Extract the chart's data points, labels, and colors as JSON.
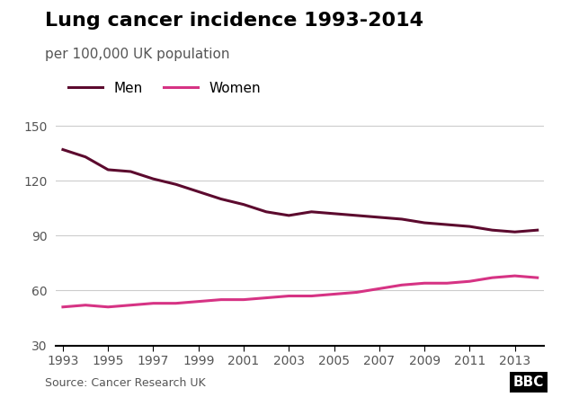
{
  "title": "Lung cancer incidence 1993-2014",
  "subtitle": "per 100,000 UK population",
  "source": "Source: Cancer Research UK",
  "years": [
    1993,
    1994,
    1995,
    1996,
    1997,
    1998,
    1999,
    2000,
    2001,
    2002,
    2003,
    2004,
    2005,
    2006,
    2007,
    2008,
    2009,
    2010,
    2011,
    2012,
    2013,
    2014
  ],
  "men": [
    137,
    133,
    126,
    125,
    121,
    118,
    114,
    110,
    107,
    103,
    101,
    103,
    102,
    101,
    100,
    99,
    97,
    96,
    95,
    93,
    92,
    93
  ],
  "women": [
    51,
    52,
    51,
    52,
    53,
    53,
    54,
    55,
    55,
    56,
    57,
    57,
    58,
    59,
    61,
    63,
    64,
    64,
    65,
    67,
    68,
    67
  ],
  "men_color": "#5c0a2e",
  "women_color": "#d63384",
  "background_color": "#ffffff",
  "grid_color": "#cccccc",
  "axis_bottom_color": "#000000",
  "yticks": [
    30,
    60,
    90,
    120,
    150
  ],
  "xticks": [
    1993,
    1995,
    1997,
    1999,
    2001,
    2003,
    2005,
    2007,
    2009,
    2011,
    2013
  ],
  "ylim": [
    30,
    158
  ],
  "xlim": [
    1993,
    2014
  ],
  "legend_men": "Men",
  "legend_women": "Women",
  "title_fontsize": 16,
  "subtitle_fontsize": 11,
  "tick_fontsize": 10,
  "legend_fontsize": 11,
  "source_fontsize": 9,
  "line_width": 2.2,
  "bbc_logo_text": "BBC"
}
